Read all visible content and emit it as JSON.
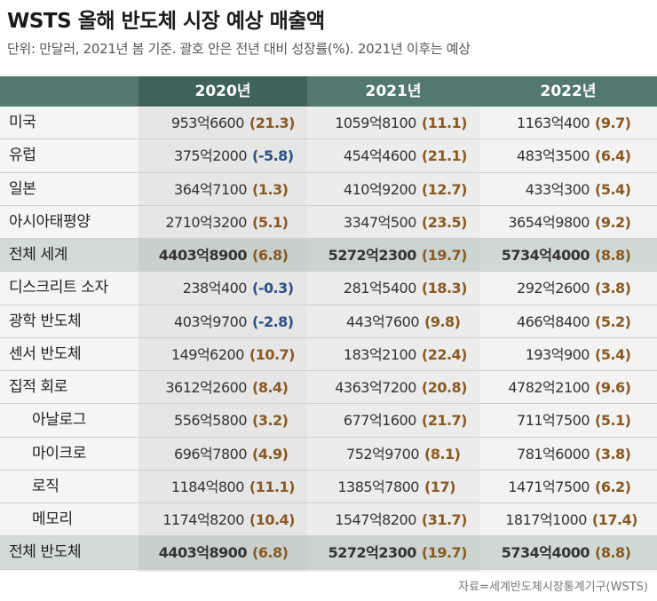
{
  "title": "WSTS 올해 반도체 시장 예상 매출액",
  "subtitle": "단위: 만달러, 2021년 봄 기준. 괄호 안은 전년 대비 성장률(%). 2021년 이후는 예상",
  "colors": {
    "header": "#52786f",
    "header_dark": "#3f635b",
    "positive": "#8a5a22",
    "negative": "#2c4f86"
  },
  "columns": [
    "2020년",
    "2021년",
    "2022년"
  ],
  "rows": [
    {
      "label": "미국",
      "sub": false,
      "total": false,
      "cells": [
        {
          "value": "953억6600",
          "pct": "(21.3)",
          "sign": "pos"
        },
        {
          "value": "1059억8100",
          "pct": "(11.1)",
          "sign": "pos"
        },
        {
          "value": "1163억400",
          "pct": "(9.7)",
          "sign": "pos"
        }
      ]
    },
    {
      "label": "유럽",
      "sub": false,
      "total": false,
      "cells": [
        {
          "value": "375억2000",
          "pct": "(-5.8)",
          "sign": "neg"
        },
        {
          "value": "454억4600",
          "pct": "(21.1)",
          "sign": "pos"
        },
        {
          "value": "483억3500",
          "pct": "(6.4)",
          "sign": "pos"
        }
      ]
    },
    {
      "label": "일본",
      "sub": false,
      "total": false,
      "cells": [
        {
          "value": "364억7100",
          "pct": "(1.3)",
          "sign": "pos"
        },
        {
          "value": "410억9200",
          "pct": "(12.7)",
          "sign": "pos"
        },
        {
          "value": "433억300",
          "pct": "(5.4)",
          "sign": "pos"
        }
      ]
    },
    {
      "label": "아시아태평양",
      "sub": false,
      "total": false,
      "cells": [
        {
          "value": "2710억3200",
          "pct": "(5.1)",
          "sign": "pos"
        },
        {
          "value": "3347억500",
          "pct": "(23.5)",
          "sign": "pos"
        },
        {
          "value": "3654억9800",
          "pct": "(9.2)",
          "sign": "pos"
        }
      ]
    },
    {
      "label": "전체 세계",
      "sub": false,
      "total": true,
      "cells": [
        {
          "value": "4403억8900",
          "pct": "(6.8)",
          "sign": "pos"
        },
        {
          "value": "5272억2300",
          "pct": "(19.7)",
          "sign": "pos"
        },
        {
          "value": "5734억4000",
          "pct": "(8.8)",
          "sign": "pos"
        }
      ]
    },
    {
      "label": "디스크리트 소자",
      "sub": false,
      "total": false,
      "cells": [
        {
          "value": "238억400",
          "pct": "(-0.3)",
          "sign": "neg"
        },
        {
          "value": "281억5400",
          "pct": "(18.3)",
          "sign": "pos"
        },
        {
          "value": "292억2600",
          "pct": "(3.8)",
          "sign": "pos"
        }
      ]
    },
    {
      "label": "광학 반도체",
      "sub": false,
      "total": false,
      "cells": [
        {
          "value": "403억9700",
          "pct": "(-2.8)",
          "sign": "neg"
        },
        {
          "value": "443억7600",
          "pct": "(9.8)",
          "sign": "pos"
        },
        {
          "value": "466억8400",
          "pct": "(5.2)",
          "sign": "pos"
        }
      ]
    },
    {
      "label": "센서 반도체",
      "sub": false,
      "total": false,
      "cells": [
        {
          "value": "149억6200",
          "pct": "(10.7)",
          "sign": "pos"
        },
        {
          "value": "183억2100",
          "pct": "(22.4)",
          "sign": "pos"
        },
        {
          "value": "193억900",
          "pct": "(5.4)",
          "sign": "pos"
        }
      ]
    },
    {
      "label": "집적 회로",
      "sub": false,
      "total": false,
      "cells": [
        {
          "value": "3612억2600",
          "pct": "(8.4)",
          "sign": "pos"
        },
        {
          "value": "4363억7200",
          "pct": "(20.8)",
          "sign": "pos"
        },
        {
          "value": "4782억2100",
          "pct": "(9.6)",
          "sign": "pos"
        }
      ]
    },
    {
      "label": "아날로그",
      "sub": true,
      "total": false,
      "cells": [
        {
          "value": "556억5800",
          "pct": "(3.2)",
          "sign": "pos"
        },
        {
          "value": "677억1600",
          "pct": "(21.7)",
          "sign": "pos"
        },
        {
          "value": "711억7500",
          "pct": "(5.1)",
          "sign": "pos"
        }
      ]
    },
    {
      "label": "마이크로",
      "sub": true,
      "total": false,
      "cells": [
        {
          "value": "696억7800",
          "pct": "(4.9)",
          "sign": "pos"
        },
        {
          "value": "752억9700",
          "pct": "(8.1)",
          "sign": "pos"
        },
        {
          "value": "781억6000",
          "pct": "(3.8)",
          "sign": "pos"
        }
      ]
    },
    {
      "label": "로직",
      "sub": true,
      "total": false,
      "cells": [
        {
          "value": "1184억800",
          "pct": "(11.1)",
          "sign": "pos"
        },
        {
          "value": "1385억7800",
          "pct": "(17)",
          "sign": "pos"
        },
        {
          "value": "1471억7500",
          "pct": "(6.2)",
          "sign": "pos"
        }
      ]
    },
    {
      "label": "메모리",
      "sub": true,
      "total": false,
      "cells": [
        {
          "value": "1174억8200",
          "pct": "(10.4)",
          "sign": "pos"
        },
        {
          "value": "1547억8200",
          "pct": "(31.7)",
          "sign": "pos"
        },
        {
          "value": "1817억1000",
          "pct": "(17.4)",
          "sign": "pos"
        }
      ]
    },
    {
      "label": "전체 반도체",
      "sub": false,
      "total": true,
      "cells": [
        {
          "value": "4403억8900",
          "pct": "(6.8)",
          "sign": "pos"
        },
        {
          "value": "5272억2300",
          "pct": "(19.7)",
          "sign": "pos"
        },
        {
          "value": "5734억4000",
          "pct": "(8.8)",
          "sign": "pos"
        }
      ]
    }
  ],
  "source": "자료=세계반도체시장통계기구(WSTS)"
}
